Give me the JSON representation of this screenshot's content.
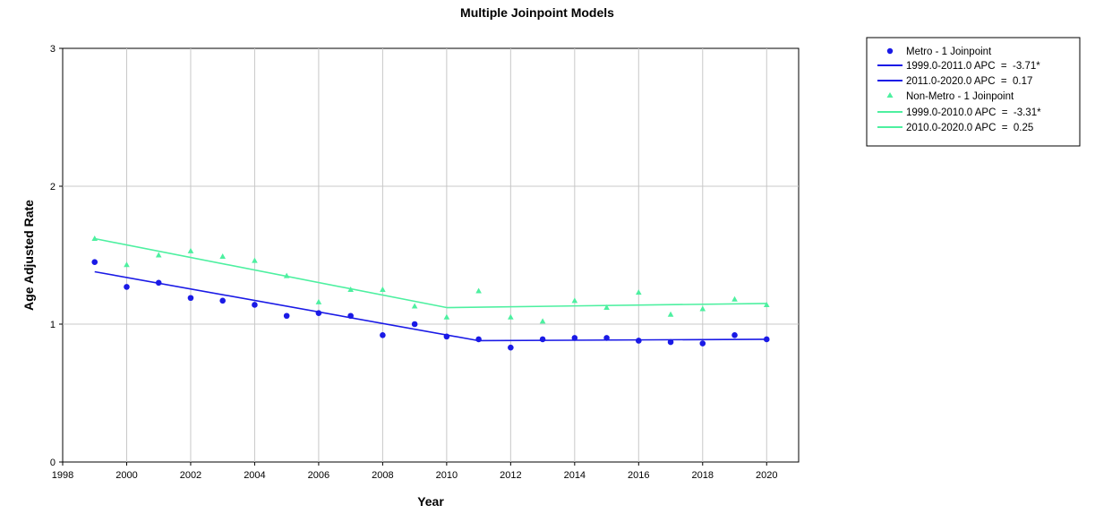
{
  "chart_data": {
    "type": "line",
    "title": "Multiple Joinpoint Models",
    "xlabel": "Year",
    "ylabel": "Age Adjusted Rate",
    "xlim": [
      1998,
      2021
    ],
    "ylim": [
      0,
      3
    ],
    "xticks": [
      "1998",
      "2000",
      "2002",
      "2004",
      "2006",
      "2008",
      "2010",
      "2012",
      "2014",
      "2016",
      "2018",
      "2020"
    ],
    "yticks": [
      "0",
      "1",
      "2",
      "3"
    ],
    "grid": true,
    "legend_position": "right-top-outside",
    "colors": {
      "metro": "#1a1ae6",
      "nonmetro": "#4df0a0"
    },
    "series": [
      {
        "name": "Metro - 1 Joinpoint",
        "marker": "circle",
        "color": "#1a1ae6",
        "x": [
          1999,
          2000,
          2001,
          2002,
          2003,
          2004,
          2005,
          2006,
          2007,
          2008,
          2009,
          2010,
          2011,
          2012,
          2013,
          2014,
          2015,
          2016,
          2017,
          2018,
          2019,
          2020
        ],
        "values": [
          1.45,
          1.27,
          1.3,
          1.19,
          1.17,
          1.14,
          1.06,
          1.08,
          1.06,
          0.92,
          1.0,
          0.91,
          0.89,
          0.83,
          0.89,
          0.9,
          0.9,
          0.88,
          0.87,
          0.86,
          0.92,
          0.89
        ]
      },
      {
        "name": "Non-Metro - 1 Joinpoint",
        "marker": "triangle",
        "color": "#4df0a0",
        "x": [
          1999,
          2000,
          2001,
          2002,
          2003,
          2004,
          2005,
          2006,
          2007,
          2008,
          2009,
          2010,
          2011,
          2012,
          2013,
          2014,
          2015,
          2016,
          2017,
          2018,
          2019,
          2020
        ],
        "values": [
          1.62,
          1.43,
          1.5,
          1.53,
          1.49,
          1.46,
          1.35,
          1.16,
          1.25,
          1.25,
          1.13,
          1.05,
          1.24,
          1.05,
          1.02,
          1.17,
          1.12,
          1.23,
          1.07,
          1.11,
          1.18,
          1.14
        ]
      }
    ],
    "trend_segments": [
      {
        "label": "1999.0-2011.0 APC  =  -3.71*",
        "color": "#1a1ae6",
        "x": [
          1999,
          2011
        ],
        "y": [
          1.38,
          0.88
        ]
      },
      {
        "label": "2011.0-2020.0 APC  =  0.17",
        "color": "#1a1ae6",
        "x": [
          2011,
          2020
        ],
        "y": [
          0.88,
          0.89
        ]
      },
      {
        "label": "1999.0-2010.0 APC  =  -3.31*",
        "color": "#4df0a0",
        "x": [
          1999,
          2010
        ],
        "y": [
          1.62,
          1.12
        ]
      },
      {
        "label": "2010.0-2020.0 APC  =  0.25",
        "color": "#4df0a0",
        "x": [
          2010,
          2020
        ],
        "y": [
          1.12,
          1.15
        ]
      }
    ]
  }
}
